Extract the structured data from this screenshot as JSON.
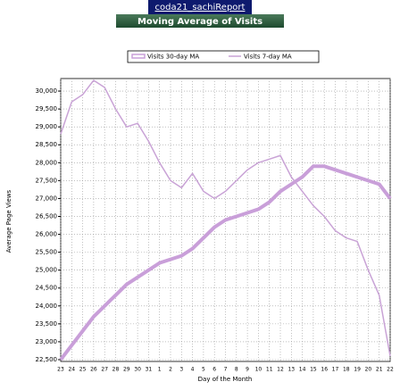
{
  "header": "coda21_sachiReport",
  "chart_data": {
    "type": "line",
    "title": "Moving Average of Visits",
    "x_label": "Day of the Month",
    "y_label": "Average Page Views",
    "categories": [
      "23",
      "24",
      "25",
      "26",
      "27",
      "28",
      "29",
      "30",
      "31",
      "1",
      "2",
      "3",
      "4",
      "5",
      "6",
      "7",
      "8",
      "9",
      "10",
      "11",
      "12",
      "13",
      "14",
      "15",
      "16",
      "17",
      "18",
      "19",
      "20",
      "21",
      "22"
    ],
    "series": [
      {
        "name": "Visits 30-day MA",
        "color": "#c99fd9",
        "width": 4,
        "values": [
          22500,
          22900,
          23300,
          23700,
          24000,
          24300,
          24600,
          24800,
          25000,
          25200,
          25300,
          25400,
          25600,
          25900,
          26200,
          26400,
          26500,
          26600,
          26700,
          26900,
          27200,
          27400,
          27600,
          27900,
          27900,
          27800,
          27700,
          27600,
          27500,
          27400,
          27000
        ]
      },
      {
        "name": "Visits 7-day MA",
        "color": "#c9a3d6",
        "width": 1.5,
        "values": [
          28800,
          29700,
          29900,
          30300,
          30100,
          29500,
          29000,
          29100,
          28600,
          28000,
          27500,
          27300,
          27700,
          27200,
          27000,
          27200,
          27500,
          27800,
          28000,
          28100,
          28200,
          27600,
          27200,
          26800,
          26500,
          26100,
          25900,
          25800,
          25000,
          24300,
          22600
        ]
      }
    ],
    "ylim": [
      22450,
      30350
    ],
    "yticks": [
      {
        "value": 22500,
        "label": "22,500"
      },
      {
        "value": 23000,
        "label": "23,000"
      },
      {
        "value": 23500,
        "label": "23,500"
      },
      {
        "value": 24000,
        "label": "24,000"
      },
      {
        "value": 24500,
        "label": "24,500"
      },
      {
        "value": 25000,
        "label": "25,000"
      },
      {
        "value": 25500,
        "label": "25,500"
      },
      {
        "value": 26000,
        "label": "26,000"
      },
      {
        "value": 26500,
        "label": "26,500"
      },
      {
        "value": 27000,
        "label": "27,000"
      },
      {
        "value": 27500,
        "label": "27,500"
      },
      {
        "value": 28000,
        "label": "28,000"
      },
      {
        "value": 28500,
        "label": "28,500"
      },
      {
        "value": 29000,
        "label": "29,000"
      },
      {
        "value": 29500,
        "label": "29,500"
      },
      {
        "value": 30000,
        "label": "30,000"
      }
    ],
    "grid": true
  }
}
